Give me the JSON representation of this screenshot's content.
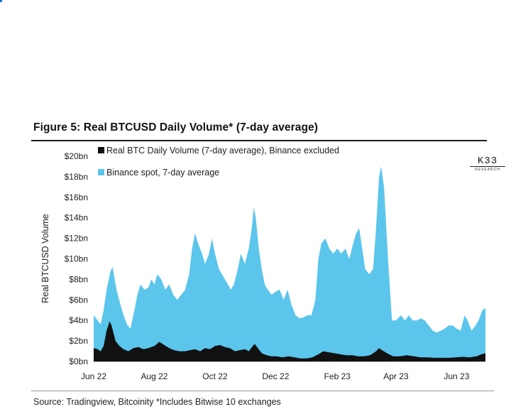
{
  "title": "Figure 5: Real BTCUSD Daily Volume* (7-day average)",
  "source": "Source: Tradingview, Bitcoinity *Includes Bitwise 10 exchanges",
  "logo": {
    "text": "K33",
    "sub": "RESEARCH"
  },
  "colors": {
    "binance": "#5bc5ec",
    "real": "#111111"
  },
  "chart_data": {
    "type": "area",
    "ylabel": "Real BTCUSD Volume",
    "xlabel": "",
    "ylim": [
      0,
      20
    ],
    "y_unit": "bn USD",
    "yticks": [
      {
        "value": 0,
        "label": "$0bn"
      },
      {
        "value": 2,
        "label": "$2bn"
      },
      {
        "value": 4,
        "label": "$4bn"
      },
      {
        "value": 6,
        "label": "$6bn"
      },
      {
        "value": 8,
        "label": "$8bn"
      },
      {
        "value": 10,
        "label": "$10bn"
      },
      {
        "value": 12,
        "label": "$12bn"
      },
      {
        "value": 14,
        "label": "$14bn"
      },
      {
        "value": 16,
        "label": "$16bn"
      },
      {
        "value": 18,
        "label": "$18bn"
      },
      {
        "value": 20,
        "label": "$20bn"
      }
    ],
    "xlim": [
      "2022-06-01",
      "2023-06-30"
    ],
    "xticks": [
      {
        "date": "2022-06-01",
        "label": "Jun 22"
      },
      {
        "date": "2022-08-01",
        "label": "Aug 22"
      },
      {
        "date": "2022-10-01",
        "label": "Oct 22"
      },
      {
        "date": "2022-12-01",
        "label": "Dec 22"
      },
      {
        "date": "2023-02-01",
        "label": "Feb 23"
      },
      {
        "date": "2023-04-01",
        "label": "Apr 23"
      },
      {
        "date": "2023-06-01",
        "label": "Jun 23"
      }
    ],
    "legend_placement": "top-left",
    "series": [
      {
        "name": "Binance spot, 7-day average",
        "key": "binance",
        "points": [
          [
            "2022-06-01",
            4.5
          ],
          [
            "2022-06-05",
            4.0
          ],
          [
            "2022-06-08",
            3.6
          ],
          [
            "2022-06-11",
            5.0
          ],
          [
            "2022-06-14",
            7.0
          ],
          [
            "2022-06-18",
            8.8
          ],
          [
            "2022-06-20",
            9.2
          ],
          [
            "2022-06-24",
            7.0
          ],
          [
            "2022-06-28",
            5.5
          ],
          [
            "2022-07-01",
            4.5
          ],
          [
            "2022-07-05",
            3.5
          ],
          [
            "2022-07-08",
            3.2
          ],
          [
            "2022-07-12",
            5.0
          ],
          [
            "2022-07-15",
            6.5
          ],
          [
            "2022-07-18",
            7.5
          ],
          [
            "2022-07-22",
            7.0
          ],
          [
            "2022-07-26",
            7.2
          ],
          [
            "2022-07-29",
            8.0
          ],
          [
            "2022-08-01",
            7.5
          ],
          [
            "2022-08-04",
            8.5
          ],
          [
            "2022-08-08",
            8.0
          ],
          [
            "2022-08-12",
            7.0
          ],
          [
            "2022-08-16",
            7.5
          ],
          [
            "2022-08-20",
            6.5
          ],
          [
            "2022-08-24",
            6.0
          ],
          [
            "2022-08-28",
            6.5
          ],
          [
            "2022-09-01",
            7.0
          ],
          [
            "2022-09-05",
            8.5
          ],
          [
            "2022-09-08",
            11.0
          ],
          [
            "2022-09-11",
            12.5
          ],
          [
            "2022-09-14",
            11.5
          ],
          [
            "2022-09-18",
            10.5
          ],
          [
            "2022-09-21",
            9.5
          ],
          [
            "2022-09-25",
            10.5
          ],
          [
            "2022-09-28",
            12.0
          ],
          [
            "2022-10-01",
            10.5
          ],
          [
            "2022-10-05",
            9.0
          ],
          [
            "2022-10-08",
            8.5
          ],
          [
            "2022-10-11",
            8.0
          ],
          [
            "2022-10-14",
            7.5
          ],
          [
            "2022-10-17",
            7.0
          ],
          [
            "2022-10-20",
            7.5
          ],
          [
            "2022-10-24",
            9.0
          ],
          [
            "2022-10-27",
            10.5
          ],
          [
            "2022-10-31",
            9.5
          ],
          [
            "2022-11-04",
            11.0
          ],
          [
            "2022-11-07",
            13.0
          ],
          [
            "2022-11-09",
            15.0
          ],
          [
            "2022-11-11",
            14.0
          ],
          [
            "2022-11-14",
            11.0
          ],
          [
            "2022-11-17",
            9.0
          ],
          [
            "2022-11-20",
            7.5
          ],
          [
            "2022-11-23",
            7.0
          ],
          [
            "2022-11-27",
            6.5
          ],
          [
            "2022-12-01",
            6.8
          ],
          [
            "2022-12-05",
            7.0
          ],
          [
            "2022-12-09",
            6.0
          ],
          [
            "2022-12-13",
            7.0
          ],
          [
            "2022-12-17",
            5.5
          ],
          [
            "2022-12-21",
            4.5
          ],
          [
            "2022-12-25",
            4.2
          ],
          [
            "2022-12-29",
            4.3
          ],
          [
            "2023-01-02",
            4.5
          ],
          [
            "2023-01-06",
            4.5
          ],
          [
            "2023-01-10",
            6.0
          ],
          [
            "2023-01-13",
            10.0
          ],
          [
            "2023-01-16",
            11.5
          ],
          [
            "2023-01-20",
            12.0
          ],
          [
            "2023-01-24",
            11.0
          ],
          [
            "2023-01-28",
            10.5
          ],
          [
            "2023-02-01",
            11.0
          ],
          [
            "2023-02-05",
            10.5
          ],
          [
            "2023-02-09",
            11.0
          ],
          [
            "2023-02-13",
            10.0
          ],
          [
            "2023-02-17",
            11.5
          ],
          [
            "2023-02-20",
            12.5
          ],
          [
            "2023-02-23",
            13.0
          ],
          [
            "2023-02-26",
            11.0
          ],
          [
            "2023-03-01",
            9.0
          ],
          [
            "2023-03-05",
            8.5
          ],
          [
            "2023-03-09",
            9.0
          ],
          [
            "2023-03-12",
            13.0
          ],
          [
            "2023-03-15",
            18.0
          ],
          [
            "2023-03-17",
            19.0
          ],
          [
            "2023-03-20",
            17.0
          ],
          [
            "2023-03-24",
            10.0
          ],
          [
            "2023-03-28",
            4.0
          ],
          [
            "2023-04-01",
            4.0
          ],
          [
            "2023-04-06",
            4.5
          ],
          [
            "2023-04-10",
            4.0
          ],
          [
            "2023-04-14",
            4.5
          ],
          [
            "2023-04-18",
            4.0
          ],
          [
            "2023-04-22",
            4.0
          ],
          [
            "2023-04-26",
            4.2
          ],
          [
            "2023-04-30",
            4.0
          ],
          [
            "2023-05-04",
            3.5
          ],
          [
            "2023-05-08",
            3.0
          ],
          [
            "2023-05-12",
            2.8
          ],
          [
            "2023-05-16",
            3.0
          ],
          [
            "2023-05-20",
            3.2
          ],
          [
            "2023-05-24",
            3.5
          ],
          [
            "2023-05-28",
            3.5
          ],
          [
            "2023-06-01",
            3.2
          ],
          [
            "2023-06-05",
            3.0
          ],
          [
            "2023-06-09",
            4.5
          ],
          [
            "2023-06-12",
            4.0
          ],
          [
            "2023-06-16",
            3.0
          ],
          [
            "2023-06-20",
            3.5
          ],
          [
            "2023-06-23",
            4.0
          ],
          [
            "2023-06-27",
            5.0
          ],
          [
            "2023-06-30",
            5.2
          ]
        ]
      },
      {
        "name": "Real BTC Daily Volume (7-day average), Binance excluded",
        "key": "real",
        "points": [
          [
            "2022-06-01",
            1.3
          ],
          [
            "2022-06-05",
            1.2
          ],
          [
            "2022-06-08",
            1.0
          ],
          [
            "2022-06-11",
            1.5
          ],
          [
            "2022-06-14",
            3.0
          ],
          [
            "2022-06-17",
            3.9
          ],
          [
            "2022-06-19",
            3.5
          ],
          [
            "2022-06-23",
            2.0
          ],
          [
            "2022-06-27",
            1.5
          ],
          [
            "2022-07-01",
            1.2
          ],
          [
            "2022-07-06",
            1.0
          ],
          [
            "2022-07-11",
            1.3
          ],
          [
            "2022-07-16",
            1.4
          ],
          [
            "2022-07-21",
            1.2
          ],
          [
            "2022-07-26",
            1.3
          ],
          [
            "2022-08-01",
            1.5
          ],
          [
            "2022-08-06",
            1.9
          ],
          [
            "2022-08-11",
            1.6
          ],
          [
            "2022-08-16",
            1.3
          ],
          [
            "2022-08-21",
            1.1
          ],
          [
            "2022-08-26",
            1.0
          ],
          [
            "2022-09-01",
            1.0
          ],
          [
            "2022-09-06",
            1.1
          ],
          [
            "2022-09-11",
            1.2
          ],
          [
            "2022-09-16",
            1.0
          ],
          [
            "2022-09-21",
            1.3
          ],
          [
            "2022-09-26",
            1.2
          ],
          [
            "2022-10-01",
            1.5
          ],
          [
            "2022-10-06",
            1.6
          ],
          [
            "2022-10-11",
            1.4
          ],
          [
            "2022-10-16",
            1.3
          ],
          [
            "2022-10-21",
            1.0
          ],
          [
            "2022-10-26",
            1.1
          ],
          [
            "2022-10-31",
            1.2
          ],
          [
            "2022-11-04",
            1.0
          ],
          [
            "2022-11-08",
            1.5
          ],
          [
            "2022-11-10",
            1.7
          ],
          [
            "2022-11-13",
            1.3
          ],
          [
            "2022-11-17",
            0.8
          ],
          [
            "2022-11-22",
            0.6
          ],
          [
            "2022-11-27",
            0.5
          ],
          [
            "2022-12-02",
            0.5
          ],
          [
            "2022-12-08",
            0.4
          ],
          [
            "2022-12-14",
            0.5
          ],
          [
            "2022-12-20",
            0.4
          ],
          [
            "2022-12-26",
            0.3
          ],
          [
            "2023-01-01",
            0.3
          ],
          [
            "2023-01-07",
            0.4
          ],
          [
            "2023-01-13",
            0.7
          ],
          [
            "2023-01-18",
            1.0
          ],
          [
            "2023-01-23",
            0.9
          ],
          [
            "2023-01-29",
            0.8
          ],
          [
            "2023-02-04",
            0.7
          ],
          [
            "2023-02-10",
            0.6
          ],
          [
            "2023-02-16",
            0.6
          ],
          [
            "2023-02-22",
            0.5
          ],
          [
            "2023-02-28",
            0.5
          ],
          [
            "2023-03-06",
            0.6
          ],
          [
            "2023-03-12",
            1.0
          ],
          [
            "2023-03-15",
            1.3
          ],
          [
            "2023-03-18",
            1.1
          ],
          [
            "2023-03-23",
            0.8
          ],
          [
            "2023-03-29",
            0.5
          ],
          [
            "2023-04-05",
            0.5
          ],
          [
            "2023-04-12",
            0.6
          ],
          [
            "2023-04-19",
            0.5
          ],
          [
            "2023-04-26",
            0.4
          ],
          [
            "2023-05-03",
            0.4
          ],
          [
            "2023-05-10",
            0.35
          ],
          [
            "2023-05-17",
            0.35
          ],
          [
            "2023-05-24",
            0.35
          ],
          [
            "2023-05-31",
            0.4
          ],
          [
            "2023-06-07",
            0.45
          ],
          [
            "2023-06-14",
            0.4
          ],
          [
            "2023-06-21",
            0.5
          ],
          [
            "2023-06-26",
            0.7
          ],
          [
            "2023-06-30",
            0.8
          ]
        ]
      }
    ]
  }
}
